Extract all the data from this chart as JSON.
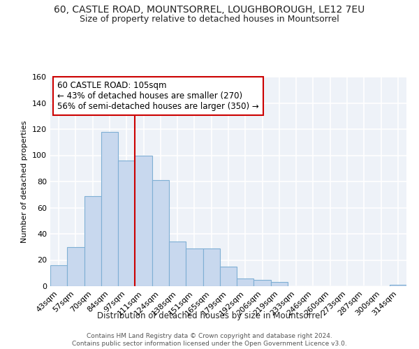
{
  "title": "60, CASTLE ROAD, MOUNTSORREL, LOUGHBOROUGH, LE12 7EU",
  "subtitle": "Size of property relative to detached houses in Mountsorrel",
  "xlabel": "Distribution of detached houses by size in Mountsorrel",
  "ylabel": "Number of detached properties",
  "categories": [
    "43sqm",
    "57sqm",
    "70sqm",
    "84sqm",
    "97sqm",
    "111sqm",
    "124sqm",
    "138sqm",
    "151sqm",
    "165sqm",
    "179sqm",
    "192sqm",
    "206sqm",
    "219sqm",
    "233sqm",
    "246sqm",
    "260sqm",
    "273sqm",
    "287sqm",
    "300sqm",
    "314sqm"
  ],
  "values": [
    16,
    30,
    69,
    118,
    96,
    100,
    81,
    34,
    29,
    29,
    15,
    6,
    5,
    3,
    0,
    0,
    0,
    0,
    0,
    0,
    1
  ],
  "bar_face_color": "#c8d8ee",
  "bar_edge_color": "#7fafd4",
  "property_line_x": 5.0,
  "property_line_color": "#cc0000",
  "annotation_text": "60 CASTLE ROAD: 105sqm\n← 43% of detached houses are smaller (270)\n56% of semi-detached houses are larger (350) →",
  "annotation_box_color": "#ffffff",
  "annotation_box_edge": "#cc0000",
  "ylim": [
    0,
    160
  ],
  "footer1": "Contains HM Land Registry data © Crown copyright and database right 2024.",
  "footer2": "Contains public sector information licensed under the Open Government Licence v3.0.",
  "background_color": "#eef2f8",
  "grid_color": "#ffffff",
  "title_fontsize": 10,
  "subtitle_fontsize": 9
}
